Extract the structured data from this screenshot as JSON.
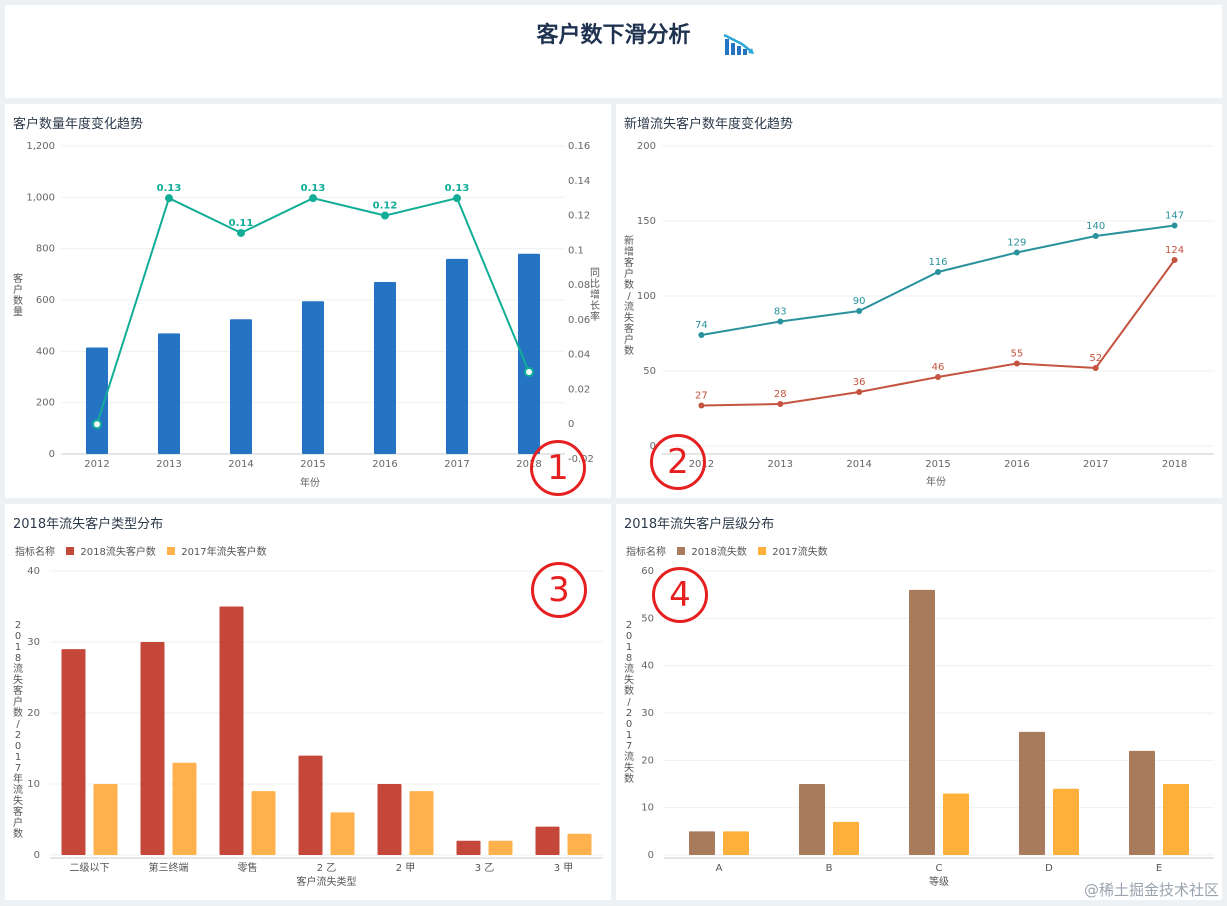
{
  "header": {
    "title": "客户数下滑分析",
    "icon": "chart-down-icon"
  },
  "watermark": "@稀土掘金技术社区",
  "badges": [
    "1",
    "2",
    "3",
    "4"
  ],
  "colors": {
    "bar1": "#2574c4",
    "line1": "#12ad97",
    "line2a": "#2a929c",
    "line2b": "#c4533f",
    "bar3a": "#c4473a",
    "bar3b": "#ffb14d",
    "bar4a": "#a77b5c",
    "bar4b": "#ffb03a"
  },
  "chart_data": [
    {
      "type": "bar",
      "title": "客户数量年度变化趋势",
      "xlabel": "年份",
      "ylabel": "客户数量",
      "y2label": "同比增长率",
      "categories": [
        "2012",
        "2013",
        "2014",
        "2015",
        "2016",
        "2017",
        "2018"
      ],
      "ylim": [
        0,
        1200
      ],
      "yticks": [
        "0",
        "200",
        "400",
        "600",
        "800",
        "1,000",
        "1,200"
      ],
      "y2lim": [
        -0.02,
        0.16
      ],
      "y2ticks": [
        "-0.02",
        "0",
        "0.02",
        "0.04",
        "0.06",
        "0.08",
        "0.1",
        "0.12",
        "0.14",
        "0.16"
      ],
      "series": [
        {
          "type": "bar",
          "values": [
            415,
            470,
            525,
            595,
            670,
            760,
            780
          ]
        },
        {
          "type": "line",
          "axis": "right",
          "values": [
            0.0,
            0.13,
            0.11,
            0.13,
            0.12,
            0.13,
            0.03
          ],
          "labels": [
            "",
            "0.13",
            "0.11",
            "0.13",
            "0.12",
            "0.13",
            ""
          ]
        }
      ]
    },
    {
      "type": "line",
      "title": "新增流失客户数年度变化趋势",
      "xlabel": "年份",
      "ylabel": "新增客户数/流失客户数",
      "categories": [
        "2012",
        "2013",
        "2014",
        "2015",
        "2016",
        "2017",
        "2018"
      ],
      "ylim": [
        0,
        200
      ],
      "yticks": [
        "0",
        "50",
        "100",
        "150",
        "200"
      ],
      "series": [
        {
          "values": [
            74,
            83,
            90,
            116,
            129,
            140,
            147
          ]
        },
        {
          "values": [
            27,
            28,
            36,
            46,
            55,
            52,
            124
          ]
        }
      ]
    },
    {
      "type": "bar",
      "title": "2018年流失客户类型分布",
      "legend_title": "指标名称",
      "xlabel": "客户流失类型",
      "ylabel": "2018流失客户数/2017年流失客户数",
      "categories": [
        "二级以下",
        "第三终端",
        "零售",
        "2 乙",
        "2 甲",
        "3 乙",
        "3 甲"
      ],
      "ylim": [
        0,
        40
      ],
      "yticks": [
        "0",
        "10",
        "20",
        "30",
        "40"
      ],
      "series": [
        {
          "name": "2018流失客户数",
          "values": [
            29,
            30,
            35,
            14,
            10,
            2,
            4
          ]
        },
        {
          "name": "2017年流失客户数",
          "values": [
            10,
            13,
            9,
            6,
            9,
            2,
            3
          ]
        }
      ]
    },
    {
      "type": "bar",
      "title": "2018年流失客户层级分布",
      "legend_title": "指标名称",
      "xlabel": "等级",
      "ylabel": "2018流失数/2017流失数",
      "categories": [
        "A",
        "B",
        "C",
        "D",
        "E"
      ],
      "ylim": [
        0,
        60
      ],
      "yticks": [
        "0",
        "10",
        "20",
        "30",
        "40",
        "50",
        "60"
      ],
      "series": [
        {
          "name": "2018流失数",
          "values": [
            5,
            15,
            56,
            26,
            22
          ]
        },
        {
          "name": "2017流失数",
          "values": [
            5,
            7,
            13,
            14,
            15
          ]
        }
      ]
    }
  ]
}
